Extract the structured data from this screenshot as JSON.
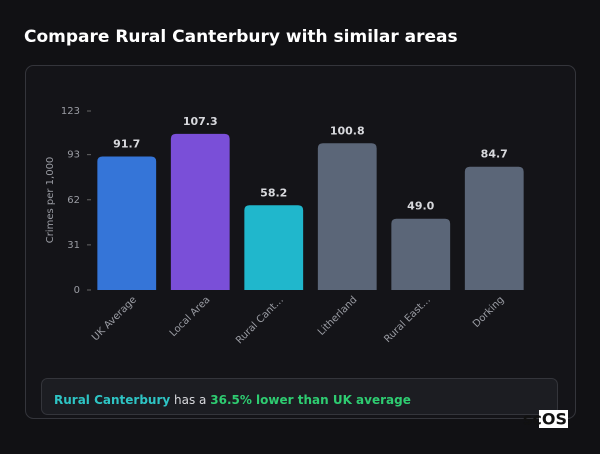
{
  "chart_data": {
    "type": "bar",
    "title": "Compare Rural Canterbury with similar areas",
    "y_label": "Crimes per 1,000",
    "categories": [
      "UK Average",
      "Local Area",
      "Rural Cant…",
      "Litherland",
      "Rural East…",
      "Dorking"
    ],
    "values": [
      91.7,
      107.3,
      58.2,
      100.8,
      49.0,
      84.7
    ],
    "value_labels": [
      "91.7",
      "107.3",
      "58.2",
      "100.8",
      "49.0",
      "84.7"
    ],
    "colors": [
      "#3575d8",
      "#7a4fd8",
      "#20b7cc",
      "#5b6678",
      "#5b6678",
      "#5b6678"
    ],
    "ylim": [
      0,
      123
    ],
    "yticks": [
      0,
      31,
      62,
      93,
      123
    ]
  },
  "summary": {
    "area": "Rural Canterbury",
    "text": "has a",
    "comparison": "36.5% lower than UK average"
  },
  "logo": "scOS"
}
